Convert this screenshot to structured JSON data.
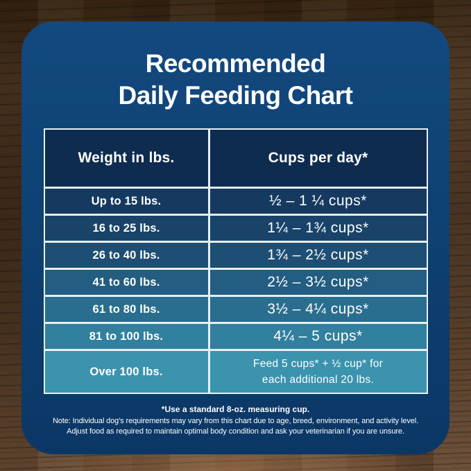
{
  "title": {
    "line1": "Recommended",
    "line2": "Daily Feeding Chart"
  },
  "table": {
    "header": {
      "col1": "Weight in lbs.",
      "col2": "Cups per day*"
    },
    "rows": [
      {
        "weight": "Up to 15 lbs.",
        "cups": "½ – 1 ¼ cups*",
        "bg": "#163a5f"
      },
      {
        "weight": "16 to 25 lbs.",
        "cups": "1¼ – 1¾ cups*",
        "bg": "#194368"
      },
      {
        "weight": "26 to 40 lbs.",
        "cups": "1¾ – 2½ cups*",
        "bg": "#1e4e73"
      },
      {
        "weight": "41 to 60 lbs.",
        "cups": "2½ – 3½ cups*",
        "bg": "#235d81"
      },
      {
        "weight": "61 to 80 lbs.",
        "cups": "3½ – 4¼ cups*",
        "bg": "#296e8e"
      },
      {
        "weight": "81 to 100 lbs.",
        "cups": "4¼ – 5 cups*",
        "bg": "#31809d"
      },
      {
        "weight": "Over 100 lbs.",
        "cups_line1": "Feed 5 cups* + ½ cup* for",
        "cups_line2": "each additional 20 lbs.",
        "bg": "#3b93ae"
      }
    ],
    "header_bg": "#0e2c4f"
  },
  "notes": {
    "bold": "*Use a standard 8-oz. measuring cup.",
    "line1": "Note: Individual dog's requirements may vary from this chart due to age, breed, environment, and activity level.",
    "line2": "Adjust food as required to maintain optimal body condition and ask your veterinarian if you are unsure."
  },
  "colors": {
    "card_bg": "#0e4173",
    "table_header_bg": "#0e2c4f",
    "separator": "#e7f0f6",
    "text": "#ffffff",
    "wood_base": "#4b3420",
    "row_gradient": [
      "#163a5f",
      "#194368",
      "#1e4e73",
      "#235d81",
      "#296e8e",
      "#31809d",
      "#3b93ae"
    ]
  },
  "chart_data": {
    "type": "table",
    "title": "Recommended Daily Feeding Chart",
    "columns": [
      "Weight in lbs.",
      "Cups per day*"
    ],
    "rows": [
      [
        "Up to 15 lbs.",
        "½ – 1 ¼ cups*"
      ],
      [
        "16 to 25 lbs.",
        "1¼ – 1¾ cups*"
      ],
      [
        "26 to 40 lbs.",
        "1¾ – 2½ cups*"
      ],
      [
        "41 to 60 lbs.",
        "2½ – 3½ cups*"
      ],
      [
        "61 to 80 lbs.",
        "3½ – 4¼ cups*"
      ],
      [
        "81 to 100 lbs.",
        "4¼ – 5 cups*"
      ],
      [
        "Over 100 lbs.",
        "Feed 5 cups* + ½ cup* for each additional 20 lbs."
      ]
    ],
    "footnotes": [
      "*Use a standard 8-oz. measuring cup.",
      "Note: Individual dog's requirements may vary from this chart due to age, breed, environment, and activity level.",
      "Adjust food as required to maintain optimal body condition and ask your veterinarian if you are unsure."
    ]
  }
}
